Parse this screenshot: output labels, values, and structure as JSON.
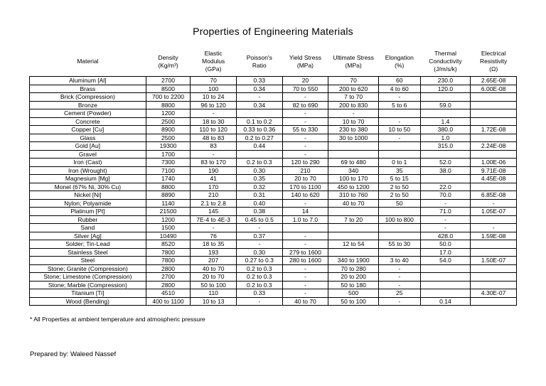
{
  "page": {
    "title": "Properties of Engineering Materials",
    "footnote": "* All Properties at ambient temperature and atmospheric pressure",
    "prepared_by": "Prepared by: Waleed Nassef"
  },
  "table": {
    "columns": [
      "Material",
      "Density\n(Kg/m³)",
      "Elastic\nModulus\n(GPa)",
      "Poisson's\nRatio",
      "Yield Stress\n(MPa)",
      "Ultimate Stress\n(MPa)",
      "Elongation\n(%)",
      "Thermal\nConductivity\n(J/m/s/k)",
      "Electrical\nResistivity\n(Ω)"
    ],
    "rows": [
      [
        "Aluminum [Al]",
        "2700",
        "70",
        "0.33",
        "20",
        "70",
        "60",
        "230.0",
        "2.65E-08"
      ],
      [
        "Brass",
        "8500",
        "100",
        "0.34",
        "70 to 550",
        "200 to 620",
        "4 to 60",
        "120.0",
        "6.00E-08"
      ],
      [
        "Brick (Compression)",
        "700 to 2200",
        "10 to 24",
        "-",
        "-",
        "7 to 70",
        "-",
        "",
        ""
      ],
      [
        "Bronze",
        "8800",
        "96 to 120",
        "0.34",
        "82 to 690",
        "200 to 830",
        "5 to 6",
        "59.0",
        ""
      ],
      [
        "Cement (Powder)",
        "1200",
        "-",
        "",
        "-",
        "-",
        "",
        "",
        ""
      ],
      [
        "Concrete",
        "2500",
        "18 to 30",
        "0.1 to 0.2",
        "-",
        "10 to 70",
        "-",
        "1.4",
        ""
      ],
      [
        "Copper [Cu]",
        "8900",
        "110 to 120",
        "0.33 to 0.36",
        "55 to 330",
        "230 to 380",
        "10 to 50",
        "380.0",
        "1.72E-08"
      ],
      [
        "Glass",
        "2500",
        "48 to 83",
        "0.2 to 0.27",
        "-",
        "30 to 1000",
        "-",
        "1.0",
        ""
      ],
      [
        "Gold [Au]",
        "19300",
        "83",
        "0.44",
        "-",
        "",
        "",
        "315.0",
        "2.24E-08"
      ],
      [
        "Gravel",
        "1700",
        "-",
        "",
        "-",
        "",
        "",
        "",
        ""
      ],
      [
        "Iron (Cast)",
        "7300",
        "83 to 170",
        "0.2 to 0.3",
        "120 to 290",
        "69 to 480",
        "0 to 1",
        "52.0",
        "1.00E-06"
      ],
      [
        "Iron (Wrought)",
        "7100",
        "190",
        "0.30",
        "210",
        "340",
        "35",
        "38.0",
        "9.71E-08"
      ],
      [
        "Magnesium [Mg]",
        "1740",
        "41",
        "0.35",
        "20 to 70",
        "100 to 170",
        "5 to 15",
        "",
        "4.45E-08"
      ],
      [
        "Monel (67% Ni, 30% Cu)",
        "8800",
        "170",
        "0.32",
        "170 to 1100",
        "450 to 1200",
        "2 to 50",
        "22.0",
        ""
      ],
      [
        "Nickel [Ni]",
        "8890",
        "210",
        "0.31",
        "140 to 620",
        "310 to 760",
        "2 to 50",
        "70.0",
        "6.85E-08"
      ],
      [
        "Nylon; Polyamide",
        "1140",
        "2.1 to 2.8",
        "0.40",
        "-",
        "40 to 70",
        "50",
        "-",
        "-"
      ],
      [
        "Platinum [Pt]",
        "21500",
        "145",
        "0.38",
        "14",
        "",
        "",
        "71.0",
        "1.05E-07"
      ],
      [
        "Rubber",
        "1200",
        "7E-4 to 4E-3",
        "0.45 to 0.5",
        "1.0 to 7.0",
        "7 to 20",
        "100 to 800",
        "-",
        ""
      ],
      [
        "Sand",
        "1500",
        "-",
        "-",
        "",
        "",
        "",
        "-",
        "-"
      ],
      [
        "Silver [Ag]",
        "10490",
        "76",
        "0.37",
        "-",
        "",
        "",
        "428.0",
        "1.59E-08"
      ],
      [
        "Solder; Tin-Lead",
        "8520",
        "18 to 35",
        "-",
        "-",
        "12 to 54",
        "55 to 30",
        "50.0",
        ""
      ],
      [
        "Stainless Steel",
        "7800",
        "193",
        "0.30",
        "279 to 1600",
        "",
        "",
        "17.0",
        ""
      ],
      [
        "Steel",
        "7800",
        "207",
        "0.27 to 0.3",
        "280 to 1600",
        "340 to 1900",
        "3 to 40",
        "54.0",
        "1.50E-07"
      ],
      [
        "Stone; Granite (Compression)",
        "2800",
        "40 to 70",
        "0.2 to 0.3",
        "-",
        "70 to 280",
        "-",
        "",
        ""
      ],
      [
        "Stone; Limestone (Compression)",
        "2700",
        "20 to 70",
        "0.2 to 0.3",
        "-",
        "20 to 200",
        "-",
        "",
        ""
      ],
      [
        "Stone; Marble (Compression)",
        "2800",
        "50 to 100",
        "0.2 to 0.3",
        "-",
        "50 to 180",
        "-",
        "",
        ""
      ],
      [
        "Titanium [Ti]",
        "4510",
        "110",
        "0.33",
        "-",
        "500",
        "25",
        "",
        "4.30E-07"
      ],
      [
        "Wood (Bending)",
        "400 to 1100",
        "10 to 13",
        "-",
        "40 to 70",
        "50 to 100",
        "-",
        "0.14",
        ""
      ]
    ]
  }
}
